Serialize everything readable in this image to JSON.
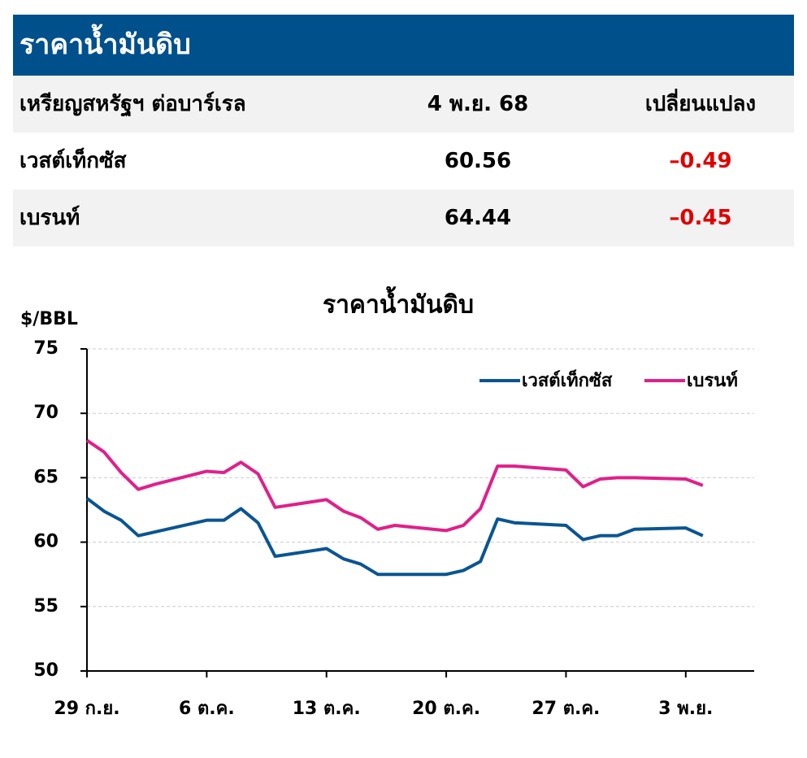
{
  "header": {
    "title": "ราคาน้ำมันดิบ"
  },
  "table": {
    "columns": [
      "เหรียญสหรัฐฯ ต่อบาร์เรล",
      "4 พ.ย. 68",
      "เปลี่ยนแปลง"
    ],
    "rows": [
      [
        "เวสต์เท็กซัส",
        "60.56",
        "–0.49"
      ],
      [
        "เบรนท์",
        "64.44",
        "–0.45"
      ]
    ]
  },
  "chart_data": {
    "type": "line",
    "title": "ราคาน้ำมันดิบ",
    "y_label": "$/BBL",
    "x": [
      0,
      1,
      2,
      3,
      4,
      7,
      8,
      9,
      10,
      11,
      14,
      15,
      16,
      17,
      18,
      21,
      22,
      23,
      24,
      25,
      28,
      29,
      30,
      31,
      32,
      35,
      36
    ],
    "xlim": [
      0,
      39
    ],
    "xticks": [
      {
        "value": 0,
        "label": "29 ก.ย."
      },
      {
        "value": 7,
        "label": "6 ต.ค."
      },
      {
        "value": 14,
        "label": "13 ต.ค."
      },
      {
        "value": 21,
        "label": "20 ต.ค."
      },
      {
        "value": 28,
        "label": "27 ต.ค."
      },
      {
        "value": 35,
        "label": "3 พ.ย."
      }
    ],
    "ylim": [
      50,
      75
    ],
    "yticks": [
      50,
      55,
      60,
      65,
      70,
      75
    ],
    "grid": true,
    "legend": "top-right",
    "series": [
      {
        "name": "เวสต์เท็กซัส",
        "color": "#0a5592",
        "values": [
          63.4,
          62.4,
          61.7,
          60.5,
          60.8,
          61.7,
          61.7,
          62.6,
          61.5,
          58.9,
          59.5,
          58.7,
          58.3,
          57.5,
          57.5,
          57.5,
          57.8,
          58.5,
          61.8,
          61.5,
          61.3,
          60.2,
          60.5,
          60.5,
          61.0,
          61.1,
          60.5
        ]
      },
      {
        "name": "เบรนท์",
        "color": "#e0208a",
        "values": [
          67.9,
          67.0,
          65.4,
          64.1,
          64.5,
          65.5,
          65.4,
          66.2,
          65.3,
          62.7,
          63.3,
          62.4,
          61.9,
          61.0,
          61.3,
          60.9,
          61.3,
          62.6,
          65.9,
          65.9,
          65.6,
          64.3,
          64.9,
          65.0,
          65.0,
          64.9,
          64.4
        ]
      }
    ]
  }
}
